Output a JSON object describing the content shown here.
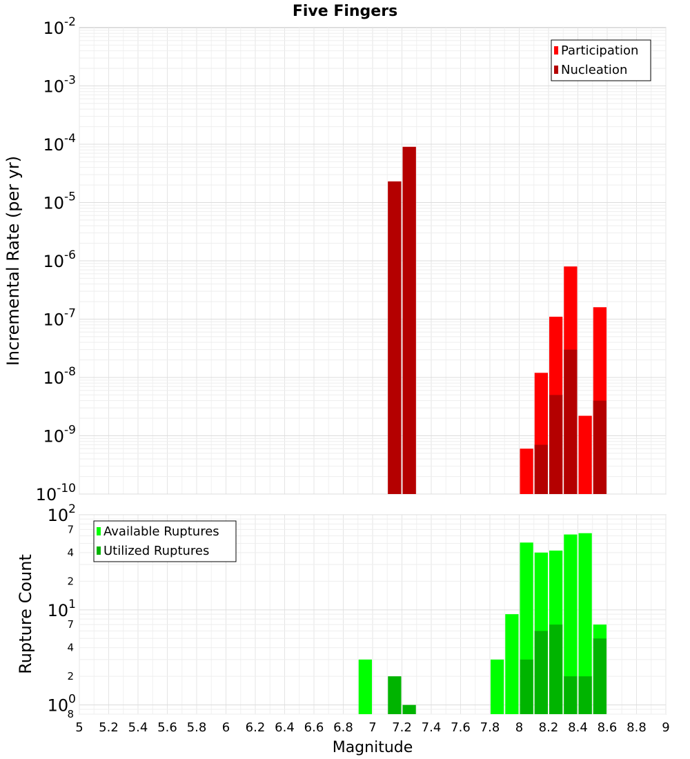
{
  "title": "Five Fingers",
  "xlabel": "Magnitude",
  "colors": {
    "participation": "#ff0000",
    "nucleation": "#b40000",
    "available": "#00ff00",
    "utilized": "#00b400"
  },
  "chart_data": [
    {
      "type": "bar",
      "panel": "top",
      "ylabel": "Incremental Rate (per yr)",
      "yscale": "log",
      "xlim": [
        5,
        9
      ],
      "ylim": [
        1e-10,
        0.01
      ],
      "ytick_labels": [
        {
          "base": "10",
          "exp": "-10"
        },
        {
          "base": "10",
          "exp": "-9"
        },
        {
          "base": "10",
          "exp": "-8"
        },
        {
          "base": "10",
          "exp": "-7"
        },
        {
          "base": "10",
          "exp": "-6"
        },
        {
          "base": "10",
          "exp": "-5"
        },
        {
          "base": "10",
          "exp": "-4"
        },
        {
          "base": "10",
          "exp": "-3"
        },
        {
          "base": "10",
          "exp": "-2"
        }
      ],
      "legend": [
        "Participation",
        "Nucleation"
      ],
      "legend_position": "top-right",
      "grid": true,
      "x": [
        7.15,
        7.25,
        8.05,
        8.15,
        8.25,
        8.35,
        8.45,
        8.55
      ],
      "series": [
        {
          "name": "Participation",
          "values": [
            2.3e-05,
            9e-05,
            6e-10,
            1.2e-08,
            1.1e-07,
            8e-07,
            2.2e-09,
            1.6e-07
          ]
        },
        {
          "name": "Nucleation",
          "values": [
            2.3e-05,
            9e-05,
            null,
            7e-10,
            5e-09,
            3e-08,
            null,
            4e-09
          ]
        }
      ]
    },
    {
      "type": "bar",
      "panel": "bottom",
      "ylabel": "Rupture Count",
      "yscale": "log",
      "xlim": [
        5,
        9
      ],
      "ylim": [
        0.8,
        100
      ],
      "major_tick_labels": [
        {
          "base": "10",
          "exp": "0"
        },
        {
          "base": "10",
          "exp": "1"
        },
        {
          "base": "10",
          "exp": "2"
        }
      ],
      "minor_tick_labels": [
        "8",
        "2",
        "4",
        "7",
        "2",
        "4",
        "7"
      ],
      "legend": [
        "Available Ruptures",
        "Utilized Ruptures"
      ],
      "legend_position": "top-left",
      "grid": true,
      "x": [
        6.95,
        7.15,
        7.25,
        7.85,
        7.95,
        8.05,
        8.15,
        8.25,
        8.35,
        8.45,
        8.55
      ],
      "series": [
        {
          "name": "Available Ruptures",
          "values": [
            3,
            null,
            null,
            3,
            9,
            51,
            40,
            42,
            62,
            64,
            7
          ]
        },
        {
          "name": "Utilized Ruptures",
          "values": [
            null,
            2,
            1,
            null,
            null,
            3,
            6,
            7,
            2,
            2,
            5
          ]
        }
      ]
    }
  ],
  "xtick_labels": [
    "5",
    "5.2",
    "5.4",
    "5.6",
    "5.8",
    "6",
    "6.2",
    "6.4",
    "6.6",
    "6.8",
    "7",
    "7.2",
    "7.4",
    "7.6",
    "7.8",
    "8",
    "8.2",
    "8.4",
    "8.6",
    "8.8",
    "9"
  ]
}
